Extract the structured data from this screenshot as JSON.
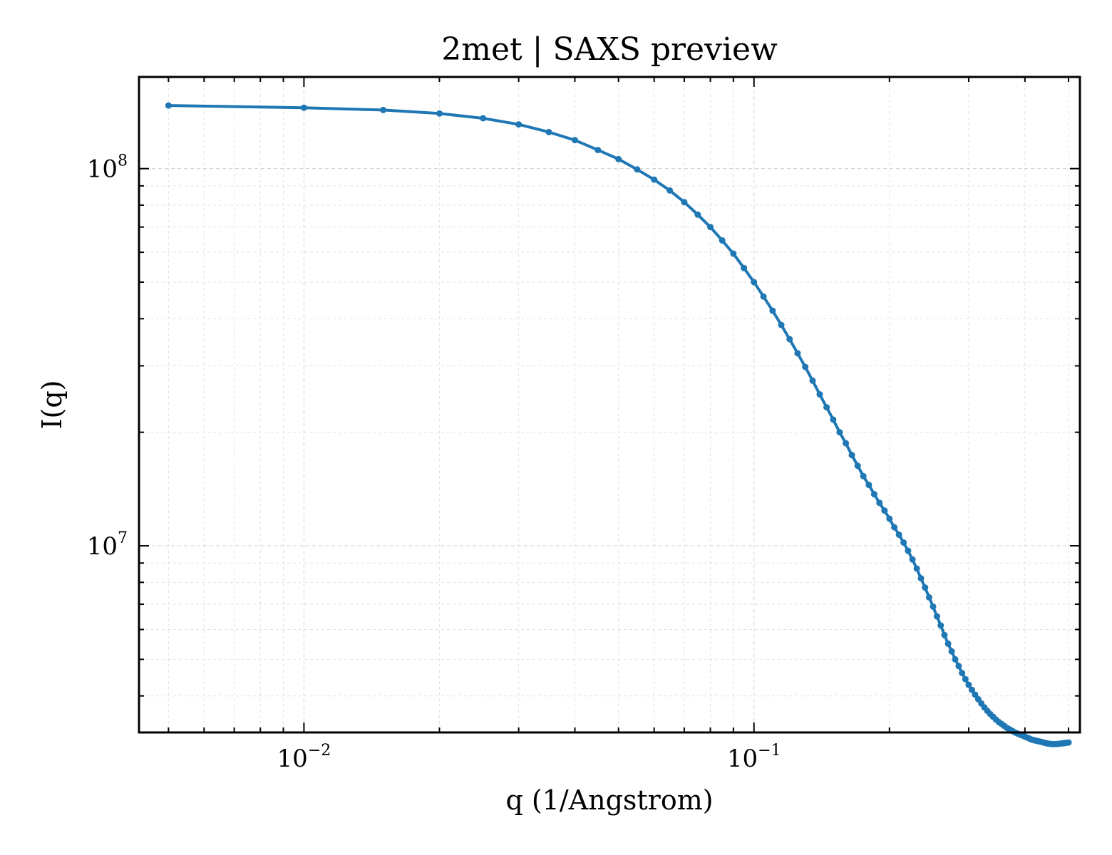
{
  "colors": {
    "series": "#1f77b4",
    "background": "#ffffff"
  },
  "chart_data": {
    "type": "line",
    "title": "2met | SAXS preview",
    "xlabel": "q (1/Angstrom)",
    "ylabel": "I(q)",
    "xscale": "log",
    "yscale": "log",
    "xlim": [
      0.0043,
      0.53
    ],
    "ylim": [
      3200000,
      175000000
    ],
    "grid": true,
    "xticks": [
      {
        "base": "10",
        "exp": "−2",
        "value": 0.01
      },
      {
        "base": "10",
        "exp": "−1",
        "value": 0.1
      }
    ],
    "yticks": [
      {
        "base": "10",
        "exp": "7",
        "value": 10000000
      },
      {
        "base": "10",
        "exp": "8",
        "value": 100000000
      }
    ],
    "series": [
      {
        "marker": "circle",
        "points": [
          [
            0.005,
            147000000
          ],
          [
            0.01,
            145000000
          ],
          [
            0.015,
            143000000
          ],
          [
            0.02,
            140000000
          ],
          [
            0.025,
            136000000
          ],
          [
            0.03,
            131000000
          ],
          [
            0.035,
            125000000
          ],
          [
            0.04,
            119000000
          ],
          [
            0.045,
            112000000
          ],
          [
            0.05,
            106000000
          ],
          [
            0.055,
            99500000
          ],
          [
            0.06,
            93500000
          ],
          [
            0.065,
            87500000
          ],
          [
            0.07,
            81500000
          ],
          [
            0.075,
            75500000
          ],
          [
            0.08,
            70000000
          ],
          [
            0.085,
            64500000
          ],
          [
            0.09,
            59500000
          ],
          [
            0.095,
            54500000
          ],
          [
            0.1,
            50000000
          ],
          [
            0.105,
            45800000
          ],
          [
            0.11,
            42000000
          ],
          [
            0.115,
            38500000
          ],
          [
            0.12,
            35300000
          ],
          [
            0.125,
            32400000
          ],
          [
            0.13,
            29800000
          ],
          [
            0.135,
            27400000
          ],
          [
            0.14,
            25200000
          ],
          [
            0.145,
            23300000
          ],
          [
            0.15,
            21600000
          ],
          [
            0.155,
            20000000
          ],
          [
            0.16,
            18700000
          ],
          [
            0.165,
            17400000
          ],
          [
            0.17,
            16300000
          ],
          [
            0.175,
            15300000
          ],
          [
            0.18,
            14500000
          ],
          [
            0.185,
            13700000
          ],
          [
            0.19,
            13000000
          ],
          [
            0.195,
            12400000
          ],
          [
            0.2,
            11800000
          ],
          [
            0.205,
            11200000
          ],
          [
            0.21,
            10700000
          ],
          [
            0.215,
            10200000
          ],
          [
            0.22,
            9700000
          ],
          [
            0.225,
            9200000
          ],
          [
            0.23,
            8700000
          ],
          [
            0.235,
            8200000
          ],
          [
            0.24,
            7750000
          ],
          [
            0.245,
            7300000
          ],
          [
            0.25,
            6900000
          ],
          [
            0.255,
            6500000
          ],
          [
            0.26,
            6150000
          ],
          [
            0.265,
            5800000
          ],
          [
            0.27,
            5500000
          ],
          [
            0.275,
            5250000
          ],
          [
            0.28,
            5000000
          ],
          [
            0.285,
            4800000
          ],
          [
            0.29,
            4600000
          ],
          [
            0.295,
            4430000
          ],
          [
            0.3,
            4280000
          ],
          [
            0.305,
            4150000
          ],
          [
            0.31,
            4030000
          ],
          [
            0.315,
            3920000
          ],
          [
            0.32,
            3820000
          ],
          [
            0.325,
            3730000
          ],
          [
            0.33,
            3650000
          ],
          [
            0.335,
            3580000
          ],
          [
            0.34,
            3520000
          ],
          [
            0.345,
            3460000
          ],
          [
            0.35,
            3410000
          ],
          [
            0.355,
            3370000
          ],
          [
            0.36,
            3330000
          ],
          [
            0.365,
            3290000
          ],
          [
            0.37,
            3260000
          ],
          [
            0.375,
            3230000
          ],
          [
            0.38,
            3200000
          ],
          [
            0.385,
            3180000
          ],
          [
            0.39,
            3160000
          ],
          [
            0.395,
            3140000
          ],
          [
            0.4,
            3120000
          ],
          [
            0.405,
            3100000
          ],
          [
            0.41,
            3080000
          ],
          [
            0.415,
            3060000
          ],
          [
            0.42,
            3050000
          ],
          [
            0.425,
            3040000
          ],
          [
            0.43,
            3030000
          ],
          [
            0.435,
            3020000
          ],
          [
            0.44,
            3010000
          ],
          [
            0.445,
            3000000
          ],
          [
            0.45,
            2990000
          ],
          [
            0.455,
            2985000
          ],
          [
            0.46,
            2980000
          ],
          [
            0.465,
            2980000
          ],
          [
            0.47,
            2982000
          ],
          [
            0.475,
            2985000
          ],
          [
            0.48,
            2990000
          ],
          [
            0.485,
            2995000
          ],
          [
            0.49,
            3000000
          ],
          [
            0.495,
            3005000
          ],
          [
            0.5,
            3010000
          ]
        ]
      }
    ]
  }
}
